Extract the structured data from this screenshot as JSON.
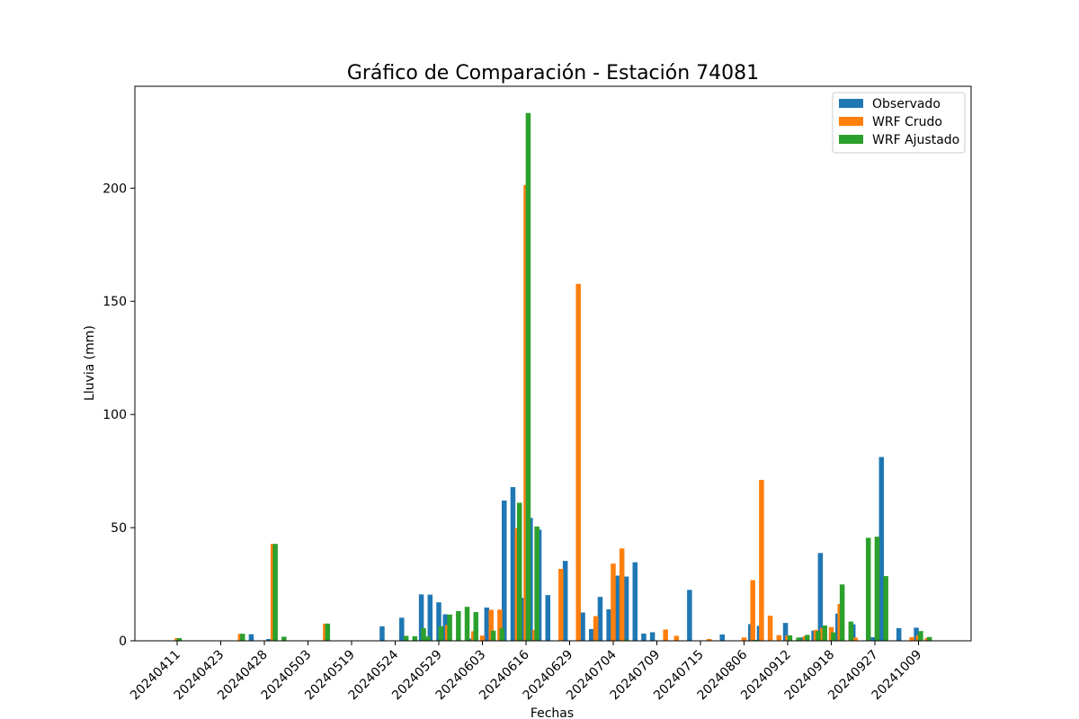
{
  "chart_data": {
    "type": "bar",
    "title": "Gráfico de Comparación - Estación 74081",
    "xlabel": "Fechas",
    "ylabel": "Lluvia (mm)",
    "ylim": [
      0,
      245
    ],
    "yticks": [
      0,
      50,
      100,
      150,
      200
    ],
    "categories": [
      "20240411",
      "20240423",
      "20240428",
      "20240503",
      "20240519",
      "20240524",
      "20240529",
      "20240603",
      "20240616",
      "20240629",
      "20240704",
      "20240709",
      "20240715",
      "20240806",
      "20240912",
      "20240918",
      "20240927",
      "20241009"
    ],
    "legend_position": "top-right",
    "grid": false,
    "series": [
      {
        "name": "Observado",
        "color": "#1f77b4",
        "points": [
          {
            "x": 0.0,
            "y": 0.0
          },
          {
            "x": 1.7,
            "y": 2.9
          },
          {
            "x": 2.1,
            "y": 0.8
          },
          {
            "x": 4.7,
            "y": 6.4
          },
          {
            "x": 5.15,
            "y": 10.2
          },
          {
            "x": 5.6,
            "y": 20.5
          },
          {
            "x": 5.8,
            "y": 20.4
          },
          {
            "x": 6.0,
            "y": 17.0
          },
          {
            "x": 6.15,
            "y": 11.7
          },
          {
            "x": 6.7,
            "y": 1.0
          },
          {
            "x": 7.1,
            "y": 14.7
          },
          {
            "x": 7.5,
            "y": 62.0
          },
          {
            "x": 7.7,
            "y": 67.9
          },
          {
            "x": 7.9,
            "y": 19.0
          },
          {
            "x": 8.1,
            "y": 54.3
          },
          {
            "x": 8.3,
            "y": 49.1
          },
          {
            "x": 8.5,
            "y": 20.2
          },
          {
            "x": 8.9,
            "y": 35.3
          },
          {
            "x": 9.3,
            "y": 12.5
          },
          {
            "x": 9.5,
            "y": 5.2
          },
          {
            "x": 9.7,
            "y": 19.4
          },
          {
            "x": 9.9,
            "y": 13.9
          },
          {
            "x": 10.1,
            "y": 28.8
          },
          {
            "x": 10.3,
            "y": 28.4
          },
          {
            "x": 10.5,
            "y": 34.7
          },
          {
            "x": 10.7,
            "y": 3.2
          },
          {
            "x": 10.9,
            "y": 3.8
          },
          {
            "x": 11.75,
            "y": 22.5
          },
          {
            "x": 12.5,
            "y": 2.8
          },
          {
            "x": 13.15,
            "y": 7.4
          },
          {
            "x": 13.35,
            "y": 6.6
          },
          {
            "x": 13.95,
            "y": 7.9
          },
          {
            "x": 14.3,
            "y": 1.5
          },
          {
            "x": 14.6,
            "y": 4.5
          },
          {
            "x": 14.75,
            "y": 38.8
          },
          {
            "x": 15.15,
            "y": 12.0
          },
          {
            "x": 15.5,
            "y": 7.3
          },
          {
            "x": 15.95,
            "y": 1.6
          },
          {
            "x": 16.15,
            "y": 81.2
          },
          {
            "x": 16.55,
            "y": 5.6
          },
          {
            "x": 16.95,
            "y": 5.8
          }
        ]
      },
      {
        "name": "WRF Crudo",
        "color": "#ff7f0e",
        "points": [
          {
            "x": 0.0,
            "y": 1.2
          },
          {
            "x": 1.45,
            "y": 3.1
          },
          {
            "x": 2.2,
            "y": 42.8
          },
          {
            "x": 3.4,
            "y": 7.6
          },
          {
            "x": 5.7,
            "y": 0.3
          },
          {
            "x": 6.2,
            "y": 7.0
          },
          {
            "x": 6.8,
            "y": 4.2
          },
          {
            "x": 7.0,
            "y": 2.3
          },
          {
            "x": 7.2,
            "y": 13.7
          },
          {
            "x": 7.4,
            "y": 13.8
          },
          {
            "x": 7.8,
            "y": 49.8
          },
          {
            "x": 8.0,
            "y": 201.4
          },
          {
            "x": 8.2,
            "y": 4.8
          },
          {
            "x": 8.8,
            "y": 31.8
          },
          {
            "x": 9.2,
            "y": 157.7
          },
          {
            "x": 9.6,
            "y": 10.9
          },
          {
            "x": 10.0,
            "y": 34.1
          },
          {
            "x": 10.2,
            "y": 40.8
          },
          {
            "x": 11.2,
            "y": 5.0
          },
          {
            "x": 11.45,
            "y": 2.2
          },
          {
            "x": 12.2,
            "y": 0.8
          },
          {
            "x": 13.0,
            "y": 1.5
          },
          {
            "x": 13.2,
            "y": 26.8
          },
          {
            "x": 13.4,
            "y": 71.1
          },
          {
            "x": 13.6,
            "y": 11.1
          },
          {
            "x": 13.8,
            "y": 2.5
          },
          {
            "x": 14.0,
            "y": 2.4
          },
          {
            "x": 14.4,
            "y": 2.0
          },
          {
            "x": 14.65,
            "y": 4.8
          },
          {
            "x": 14.8,
            "y": 5.7
          },
          {
            "x": 15.0,
            "y": 6.1
          },
          {
            "x": 15.2,
            "y": 16.3
          },
          {
            "x": 15.55,
            "y": 1.4
          },
          {
            "x": 16.85,
            "y": 1.6
          },
          {
            "x": 17.0,
            "y": 2.5
          },
          {
            "x": 17.2,
            "y": 1.2
          }
        ]
      },
      {
        "name": "WRF Ajustado",
        "color": "#2ca02c",
        "points": [
          {
            "x": 0.05,
            "y": 1.2
          },
          {
            "x": 1.5,
            "y": 3.1
          },
          {
            "x": 2.25,
            "y": 42.8
          },
          {
            "x": 2.45,
            "y": 1.8
          },
          {
            "x": 3.45,
            "y": 7.6
          },
          {
            "x": 5.25,
            "y": 2.2
          },
          {
            "x": 5.45,
            "y": 2.0
          },
          {
            "x": 5.65,
            "y": 5.6
          },
          {
            "x": 5.75,
            "y": 1.9
          },
          {
            "x": 6.05,
            "y": 6.4
          },
          {
            "x": 6.25,
            "y": 11.6
          },
          {
            "x": 6.45,
            "y": 13.1
          },
          {
            "x": 6.65,
            "y": 15.0
          },
          {
            "x": 6.85,
            "y": 12.7
          },
          {
            "x": 7.25,
            "y": 4.5
          },
          {
            "x": 7.45,
            "y": 5.5
          },
          {
            "x": 7.85,
            "y": 61.0
          },
          {
            "x": 8.05,
            "y": 233.2
          },
          {
            "x": 8.25,
            "y": 50.5
          },
          {
            "x": 9.65,
            "y": 0.3
          },
          {
            "x": 10.3,
            "y": 0.5
          },
          {
            "x": 13.25,
            "y": 0.4
          },
          {
            "x": 14.05,
            "y": 2.4
          },
          {
            "x": 14.25,
            "y": 1.4
          },
          {
            "x": 14.45,
            "y": 2.6
          },
          {
            "x": 14.7,
            "y": 4.3
          },
          {
            "x": 14.85,
            "y": 6.8
          },
          {
            "x": 15.05,
            "y": 3.7
          },
          {
            "x": 15.25,
            "y": 24.9
          },
          {
            "x": 15.45,
            "y": 8.5
          },
          {
            "x": 15.85,
            "y": 45.5
          },
          {
            "x": 16.05,
            "y": 46.0
          },
          {
            "x": 16.25,
            "y": 28.6
          },
          {
            "x": 17.05,
            "y": 4.3
          },
          {
            "x": 17.25,
            "y": 1.7
          }
        ]
      }
    ]
  }
}
